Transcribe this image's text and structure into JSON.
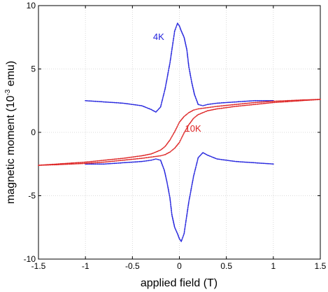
{
  "chart_data": {
    "type": "scatter",
    "xlabel": "applied field (T)",
    "ylabel_main": "magnetic moment (10",
    "ylabel_sup": "-3",
    "ylabel_tail": " emu)",
    "xlim": [
      -1.5,
      1.5
    ],
    "ylim": [
      -10,
      10
    ],
    "xticks": [
      -1.5,
      -1,
      -0.5,
      0,
      0.5,
      1,
      1.5
    ],
    "xtick_labels": [
      "-1.5",
      "-1",
      "-0.5",
      "0",
      "0.5",
      "1",
      "1.5"
    ],
    "yticks": [
      -10,
      -5,
      0,
      5,
      10
    ],
    "ytick_labels": [
      "-10",
      "-5",
      "0",
      "5",
      "10"
    ],
    "grid": true,
    "annotations": [
      {
        "text": "4K",
        "x": -0.28,
        "y": 7.3,
        "color": "#2222dd"
      },
      {
        "text": "10K",
        "x": 0.06,
        "y": 0.05,
        "color": "#dd2222"
      }
    ],
    "series": [
      {
        "label": "4K",
        "color": "#2222dd",
        "branches": [
          {
            "x": [
              -1.0,
              -0.8,
              -0.6,
              -0.4,
              -0.3,
              -0.25,
              -0.2,
              -0.15,
              -0.1,
              -0.07,
              -0.05,
              -0.02,
              0.0,
              0.02,
              0.05,
              0.08,
              0.1,
              0.13,
              0.16,
              0.2,
              0.25,
              0.3,
              0.4,
              0.6,
              0.8,
              1.0
            ],
            "y": [
              2.5,
              2.4,
              2.3,
              2.1,
              1.8,
              1.6,
              2.0,
              3.5,
              5.5,
              7.0,
              8.0,
              8.6,
              8.4,
              8.0,
              7.5,
              6.5,
              5.2,
              4.0,
              3.0,
              2.2,
              2.1,
              2.2,
              2.3,
              2.4,
              2.5,
              2.5
            ]
          },
          {
            "x": [
              1.0,
              0.8,
              0.6,
              0.4,
              0.3,
              0.25,
              0.2,
              0.15,
              0.1,
              0.07,
              0.05,
              0.02,
              0.0,
              -0.02,
              -0.05,
              -0.08,
              -0.1,
              -0.13,
              -0.16,
              -0.2,
              -0.25,
              -0.3,
              -0.4,
              -0.6,
              -0.8,
              -1.0
            ],
            "y": [
              -2.5,
              -2.4,
              -2.3,
              -2.1,
              -1.8,
              -1.6,
              -2.0,
              -3.5,
              -5.5,
              -7.0,
              -8.0,
              -8.6,
              -8.4,
              -8.0,
              -7.5,
              -6.5,
              -5.2,
              -4.0,
              -3.0,
              -2.2,
              -2.1,
              -2.2,
              -2.3,
              -2.4,
              -2.5,
              -2.5
            ]
          }
        ]
      },
      {
        "label": "10K",
        "color": "#dd2222",
        "branches": [
          {
            "x": [
              1.5,
              1.3,
              1.0,
              0.8,
              0.6,
              0.4,
              0.3,
              0.2,
              0.15,
              0.1,
              0.05,
              0.0,
              -0.05,
              -0.1,
              -0.15,
              -0.2,
              -0.3,
              -0.4,
              -0.6,
              -0.8,
              -1.0,
              -1.3,
              -1.5
            ],
            "y": [
              2.6,
              2.55,
              2.45,
              2.35,
              2.2,
              2.05,
              1.95,
              1.85,
              1.75,
              1.55,
              1.25,
              0.8,
              0.05,
              -0.6,
              -1.1,
              -1.4,
              -1.7,
              -1.85,
              -2.05,
              -2.2,
              -2.35,
              -2.5,
              -2.6
            ]
          },
          {
            "x": [
              -1.5,
              -1.3,
              -1.0,
              -0.8,
              -0.6,
              -0.4,
              -0.3,
              -0.2,
              -0.15,
              -0.1,
              -0.05,
              0.0,
              0.05,
              0.1,
              0.15,
              0.2,
              0.3,
              0.4,
              0.6,
              0.8,
              1.0,
              1.3,
              1.5
            ],
            "y": [
              -2.6,
              -2.55,
              -2.45,
              -2.35,
              -2.2,
              -2.05,
              -1.95,
              -1.85,
              -1.75,
              -1.55,
              -1.25,
              -0.8,
              -0.05,
              0.6,
              1.1,
              1.4,
              1.7,
              1.85,
              2.05,
              2.2,
              2.35,
              2.5,
              2.6
            ]
          }
        ]
      }
    ]
  }
}
